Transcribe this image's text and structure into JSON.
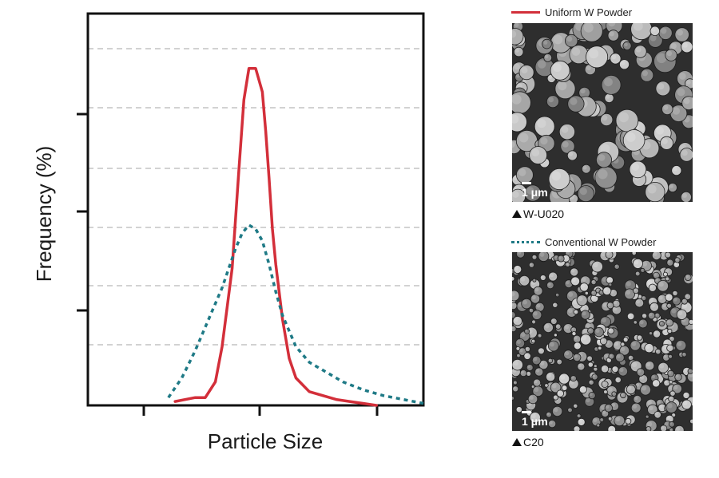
{
  "chart_data": {
    "type": "line",
    "title": "",
    "xlabel": "Particle Size",
    "ylabel": "Frequency (%)",
    "xlim": [
      0,
      100
    ],
    "ylim": [
      0,
      100
    ],
    "grid": true,
    "legend": "right",
    "series": [
      {
        "name": "Uniform W Powder",
        "color": "#d32f3a",
        "style": "solid",
        "x": [
          26,
          32,
          35,
          38,
          40,
          43,
          45,
          46.5,
          48,
          50,
          52,
          53,
          54,
          55,
          56,
          58,
          60,
          62,
          66,
          70,
          74,
          78,
          82,
          86
        ],
        "y": [
          1,
          2,
          2,
          6,
          15,
          35,
          60,
          78,
          86,
          86,
          80,
          70,
          58,
          45,
          36,
          22,
          12,
          7,
          3.5,
          2.5,
          1.5,
          1,
          0.5,
          0
        ]
      },
      {
        "name": "Conventional W Powder",
        "color": "#1f7a86",
        "style": "dotted",
        "x": [
          24,
          28,
          32,
          36,
          40,
          44,
          46,
          48,
          50,
          52,
          54,
          56,
          58,
          62,
          66,
          70,
          76,
          82,
          88,
          94,
          100
        ],
        "y": [
          2,
          7,
          14,
          22,
          30,
          40,
          44,
          46,
          45,
          42,
          36,
          29,
          23,
          15,
          11,
          9,
          6,
          4,
          2.5,
          1.5,
          0.5
        ]
      }
    ]
  },
  "legend_items": [
    {
      "label": "Uniform W Powder",
      "color": "#d32f3a"
    },
    {
      "label": "Conventional W Powder",
      "color": "#1f7a86"
    }
  ],
  "micrographs": [
    {
      "scale_label": "1 μm",
      "caption": "W-U020"
    },
    {
      "scale_label": "1 μm",
      "caption": "C20"
    }
  ]
}
